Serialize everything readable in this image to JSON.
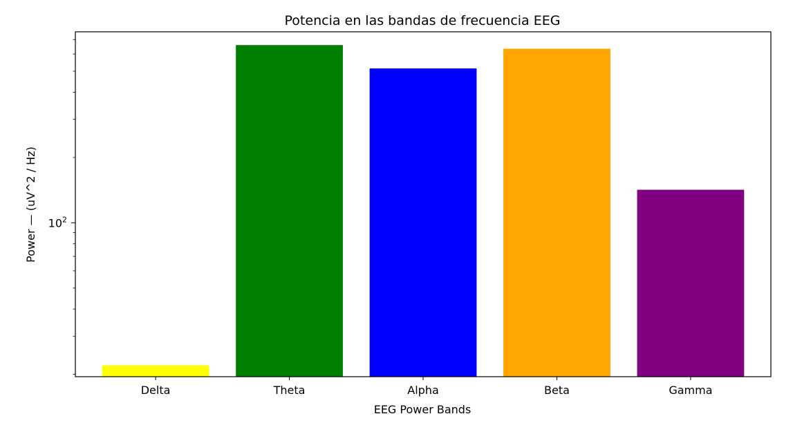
{
  "chart_data": {
    "type": "bar",
    "title": "Potencia en las bandas de frecuencia EEG",
    "xlabel": "EEG Power Bands",
    "ylabel": "Power — (uV^2 / Hz)",
    "yscale": "log",
    "ylim": [
      19.5,
      760
    ],
    "y_ticks": [
      {
        "value": 100,
        "base": "10",
        "exponent": "2"
      }
    ],
    "grid": false,
    "legend": "none",
    "categories": [
      "Delta",
      "Theta",
      "Alpha",
      "Beta",
      "Gamma"
    ],
    "values": [
      22,
      660,
      515,
      635,
      142
    ],
    "colors": [
      "#ffff00",
      "#008000",
      "#0000ff",
      "#ffa500",
      "#800080"
    ]
  }
}
